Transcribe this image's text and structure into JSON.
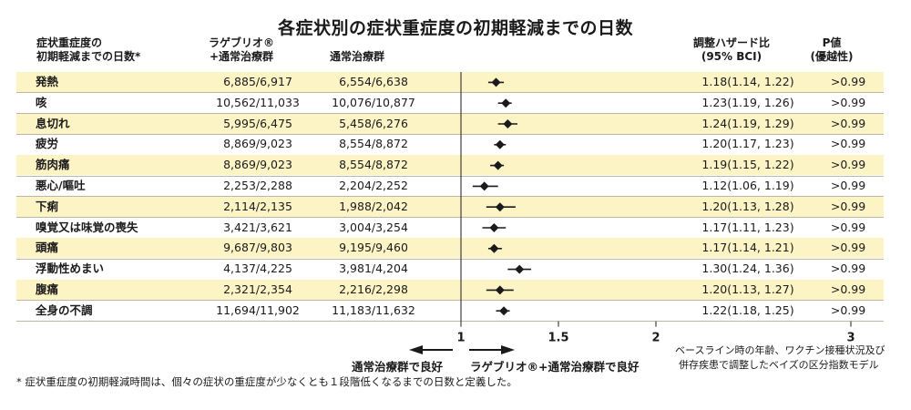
{
  "title": "各症状別の症状重症度の初期軽減までの日数",
  "headers": {
    "symptom_l1": "症状重症度の",
    "symptom_l2": "初期軽減までの日数*",
    "lagevrio_l1": "ラゲブリオ®",
    "lagevrio_l2": "+通常治療群",
    "standard": "通常治療群",
    "hr_l1": "調整ハザード比",
    "hr_l2": "(95% BCI)",
    "p_l1": "P値",
    "p_l2": "(優越性)"
  },
  "chart_data": {
    "type": "forest",
    "title": "各症状別の症状重症度の初期軽減までの日数",
    "xlim": [
      1,
      3
    ],
    "xticks": [
      "1",
      "1.5",
      "2",
      "3"
    ],
    "reference_line": 1,
    "rows": [
      {
        "symptom": "発熱",
        "lagevrio": "6,885/6,917",
        "standard": "6,554/6,638",
        "hr": 1.18,
        "lo": 1.14,
        "hi": 1.22,
        "hr_text": "1.18(1.14, 1.22)",
        "p": ">0.99"
      },
      {
        "symptom": "咳",
        "lagevrio": "10,562/11,033",
        "standard": "10,076/10,877",
        "hr": 1.23,
        "lo": 1.19,
        "hi": 1.26,
        "hr_text": "1.23(1.19, 1.26)",
        "p": ">0.99"
      },
      {
        "symptom": "息切れ",
        "lagevrio": "5,995/6,475",
        "standard": "5,458/6,276",
        "hr": 1.24,
        "lo": 1.19,
        "hi": 1.29,
        "hr_text": "1.24(1.19, 1.29)",
        "p": ">0.99"
      },
      {
        "symptom": "疲労",
        "lagevrio": "8,869/9,023",
        "standard": "8,554/8,872",
        "hr": 1.2,
        "lo": 1.17,
        "hi": 1.23,
        "hr_text": "1.20(1.17, 1.23)",
        "p": ">0.99"
      },
      {
        "symptom": "筋肉痛",
        "lagevrio": "8,869/9,023",
        "standard": "8,554/8,872",
        "hr": 1.19,
        "lo": 1.15,
        "hi": 1.22,
        "hr_text": "1.19(1.15, 1.22)",
        "p": ">0.99"
      },
      {
        "symptom": "悪心/嘔吐",
        "lagevrio": "2,253/2,288",
        "standard": "2,204/2,252",
        "hr": 1.12,
        "lo": 1.06,
        "hi": 1.19,
        "hr_text": "1.12(1.06, 1.19)",
        "p": ">0.99"
      },
      {
        "symptom": "下痢",
        "lagevrio": "2,114/2,135",
        "standard": "1,988/2,042",
        "hr": 1.2,
        "lo": 1.13,
        "hi": 1.28,
        "hr_text": "1.20(1.13, 1.28)",
        "p": ">0.99"
      },
      {
        "symptom": "嗅覚又は味覚の喪失",
        "lagevrio": "3,421/3,621",
        "standard": "3,004/3,254",
        "hr": 1.17,
        "lo": 1.11,
        "hi": 1.23,
        "hr_text": "1.17(1.11, 1.23)",
        "p": ">0.99"
      },
      {
        "symptom": "頭痛",
        "lagevrio": "9,687/9,803",
        "standard": "9,195/9,460",
        "hr": 1.17,
        "lo": 1.14,
        "hi": 1.21,
        "hr_text": "1.17(1.14, 1.21)",
        "p": ">0.99"
      },
      {
        "symptom": "浮動性めまい",
        "lagevrio": "4,137/4,225",
        "standard": "3,981/4,204",
        "hr": 1.3,
        "lo": 1.24,
        "hi": 1.36,
        "hr_text": "1.30(1.24, 1.36)",
        "p": ">0.99"
      },
      {
        "symptom": "腹痛",
        "lagevrio": "2,321/2,354",
        "standard": "2,216/2,298",
        "hr": 1.2,
        "lo": 1.13,
        "hi": 1.27,
        "hr_text": "1.20(1.13, 1.27)",
        "p": ">0.99"
      },
      {
        "symptom": "全身の不調",
        "lagevrio": "11,694/11,902",
        "standard": "11,183/11,632",
        "hr": 1.22,
        "lo": 1.18,
        "hi": 1.25,
        "hr_text": "1.22(1.18, 1.25)",
        "p": ">0.99"
      }
    ]
  },
  "direction": {
    "left": "通常治療群で良好",
    "right": "ラゲブリオ®+通常治療群で良好"
  },
  "model_note_l1": "ベースライン時の年齢、ワクチン接種状況及び",
  "model_note_l2": "併存疾患で調整したベイズの区分指数モデル",
  "footnote": "* 症状重症度の初期軽減時間は、個々の症状の重症度が少なくとも１段階低くなるまでの日数と定義した。",
  "colors": {
    "row_shade": "#fdf4c6",
    "marker": "#1a1a1a"
  }
}
